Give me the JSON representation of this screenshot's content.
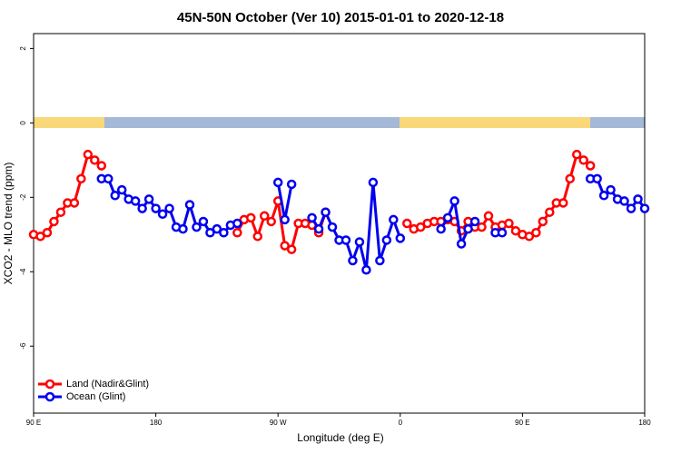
{
  "chart_data": {
    "type": "line",
    "title": "45N-50N October (Ver 10)   2015-01-01 to 2020-12-18",
    "x_label": "Longitude (deg E)",
    "y_label": "XCO2 - MLO trend (ppm)",
    "x": [
      90,
      95,
      100,
      105,
      110,
      115,
      120,
      125,
      130,
      135,
      140,
      145,
      150,
      155,
      160,
      165,
      170,
      175,
      180,
      185,
      190,
      195,
      200,
      205,
      210,
      215,
      220,
      225,
      230,
      235,
      240,
      245,
      250,
      255,
      260,
      265,
      270,
      275,
      280,
      285,
      290,
      295,
      300,
      305,
      310,
      315,
      320,
      325,
      330,
      335,
      340,
      345,
      350,
      355,
      360,
      365,
      370,
      375,
      380,
      385,
      390,
      395,
      400,
      405,
      410,
      415,
      420,
      425,
      430,
      435,
      440,
      445,
      450,
      455,
      460,
      465,
      470,
      475,
      480,
      485,
      490,
      495,
      500,
      505,
      510,
      515,
      520,
      525,
      530,
      535,
      540
    ],
    "series": [
      {
        "name": "Land (Nadir&Glint)",
        "color": "#ff0000",
        "values": [
          -3.0,
          -3.05,
          -2.95,
          -2.65,
          -2.4,
          -2.15,
          -2.15,
          -1.5,
          -0.85,
          -1.0,
          -1.15,
          null,
          null,
          null,
          null,
          null,
          null,
          null,
          null,
          null,
          null,
          null,
          null,
          null,
          null,
          null,
          null,
          null,
          null,
          null,
          -2.95,
          -2.6,
          -2.55,
          -3.05,
          -2.5,
          -2.65,
          -2.1,
          -3.3,
          -3.4,
          -2.7,
          -2.7,
          -2.75,
          -2.95,
          -2.4,
          null,
          null,
          null,
          null,
          null,
          null,
          null,
          null,
          null,
          null,
          null,
          -2.7,
          -2.85,
          -2.8,
          -2.7,
          -2.65,
          -2.65,
          -2.6,
          -2.65,
          -2.9,
          -2.65,
          -2.8,
          -2.8,
          -2.5,
          -2.8,
          -2.75,
          -2.7,
          -2.9,
          -3.0,
          -3.05,
          -2.95,
          -2.65,
          -2.4,
          -2.15,
          -2.15,
          -1.5,
          -0.85,
          -1.0,
          -1.15,
          null,
          null,
          null,
          null,
          null,
          null,
          null,
          null
        ]
      },
      {
        "name": "Ocean (Glint)",
        "color": "#0000ee",
        "values": [
          null,
          null,
          null,
          null,
          null,
          null,
          null,
          null,
          null,
          null,
          -1.5,
          -1.5,
          -1.95,
          -1.8,
          -2.05,
          -2.1,
          -2.3,
          -2.05,
          -2.3,
          -2.45,
          -2.3,
          -2.8,
          -2.85,
          -2.2,
          -2.8,
          -2.65,
          -2.95,
          -2.85,
          -2.95,
          -2.75,
          -2.7,
          null,
          null,
          null,
          null,
          null,
          -1.6,
          -2.6,
          -1.65,
          null,
          null,
          -2.55,
          -2.85,
          -2.4,
          -2.8,
          -3.15,
          -3.15,
          -3.7,
          -3.2,
          -3.95,
          -1.6,
          -3.7,
          -3.15,
          -2.6,
          -3.1,
          null,
          null,
          null,
          null,
          null,
          -2.85,
          -2.55,
          -2.1,
          -3.25,
          -2.85,
          -2.65,
          null,
          null,
          -2.95,
          -2.95,
          null,
          null,
          null,
          null,
          null,
          null,
          null,
          null,
          null,
          null,
          null,
          null,
          -1.5,
          -1.5,
          -1.95,
          -1.8,
          -2.05,
          -2.1,
          -2.3,
          -2.05,
          -2.3
        ]
      }
    ],
    "xlim": [
      90,
      540
    ],
    "xticks": [
      {
        "value": 90,
        "label": "90 E"
      },
      180,
      {
        "value": 270,
        "label": "90 W"
      },
      {
        "value": 360,
        "label": "0"
      },
      {
        "value": 450,
        "label": "90 E"
      },
      {
        "value": 540,
        "label": "180"
      }
    ],
    "ylim": [
      -7.8,
      2.4
    ],
    "yticks": [
      2,
      0,
      -2,
      -4,
      -6
    ],
    "legend": "bottom-left"
  }
}
